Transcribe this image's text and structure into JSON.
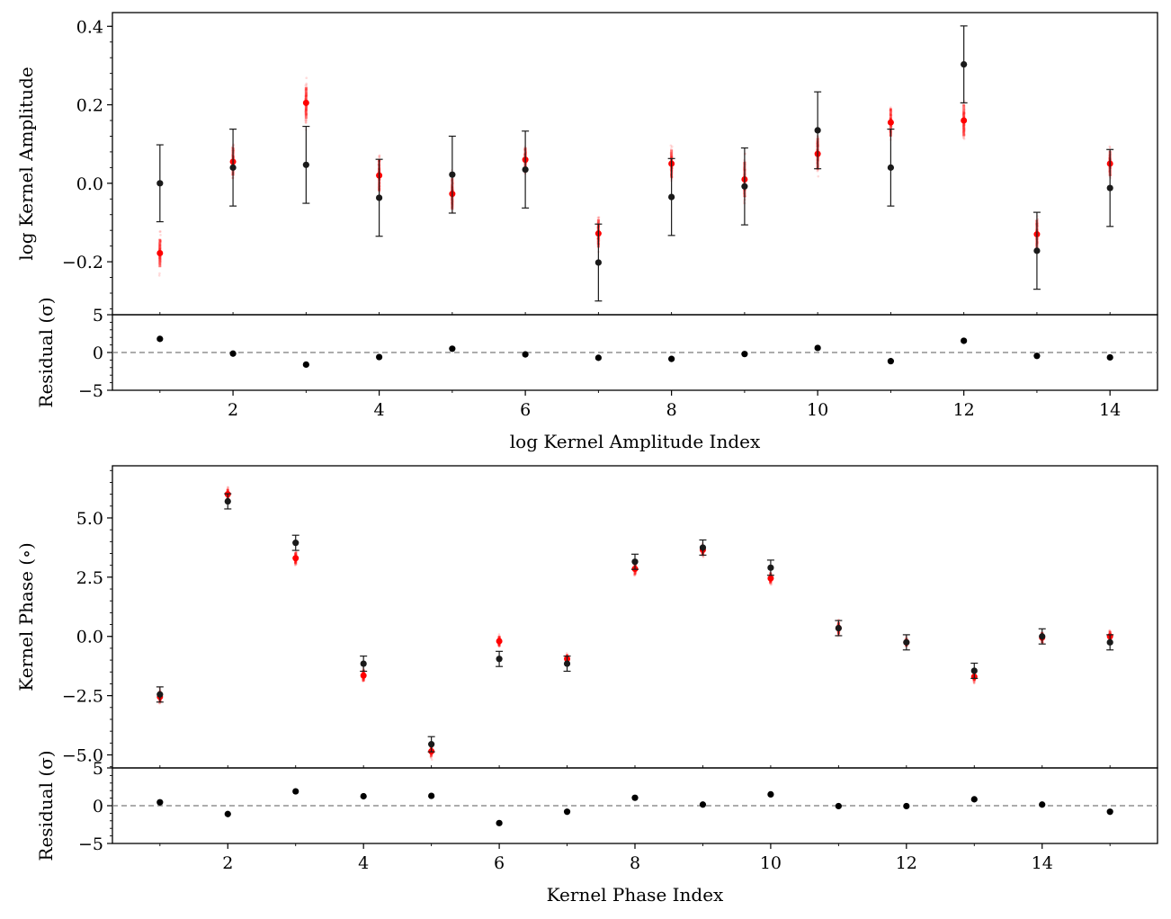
{
  "chart_data": [
    {
      "type": "scatter",
      "panel": "log-kernel-amplitude",
      "ylabel": "log Kernel Amplitude",
      "ylim": [
        -0.335,
        0.435
      ],
      "yticks": [
        -0.2,
        0.0,
        0.2,
        0.4
      ],
      "ytick_labels": [
        "−0.2",
        "0.0",
        "0.2",
        "0.4"
      ],
      "xlim": [
        0.35,
        14.65
      ],
      "series": [
        {
          "role": "observed",
          "color": "#1a1a1a",
          "x": [
            1,
            2,
            3,
            4,
            5,
            6,
            7,
            8,
            9,
            10,
            11,
            12,
            13,
            14
          ],
          "y": [
            0.0,
            0.04,
            0.047,
            -0.037,
            0.022,
            0.035,
            -0.202,
            -0.035,
            -0.008,
            0.135,
            0.04,
            0.303,
            -0.172,
            -0.012
          ],
          "err": [
            0.098,
            0.098,
            0.098,
            0.098,
            0.098,
            0.098,
            0.098,
            0.098,
            0.098,
            0.098,
            0.098,
            0.098,
            0.098,
            0.098
          ]
        },
        {
          "role": "model",
          "color": "#ff0000",
          "x": [
            1,
            2,
            3,
            4,
            5,
            6,
            7,
            8,
            9,
            10,
            11,
            12,
            13,
            14
          ],
          "y": [
            -0.178,
            0.055,
            0.205,
            0.02,
            -0.027,
            0.06,
            -0.128,
            0.05,
            0.01,
            0.075,
            0.155,
            0.16,
            -0.13,
            0.05
          ],
          "spread": [
            0.04,
            0.04,
            0.045,
            0.045,
            0.045,
            0.035,
            0.04,
            0.04,
            0.05,
            0.045,
            0.04,
            0.045,
            0.04,
            0.035
          ]
        }
      ],
      "residual": {
        "ylabel": "Residual (σ)",
        "ylim": [
          -5,
          5
        ],
        "yticks": [
          -5,
          0,
          5
        ],
        "ytick_labels": [
          "−5",
          "0",
          "5"
        ],
        "reference_line": 0,
        "x": [
          1,
          2,
          3,
          4,
          5,
          6,
          7,
          8,
          9,
          10,
          11,
          12,
          13,
          14
        ],
        "values": [
          1.8,
          -0.15,
          -1.6,
          -0.6,
          0.5,
          -0.25,
          -0.7,
          -0.85,
          -0.2,
          0.6,
          -1.15,
          1.55,
          -0.45,
          -0.65
        ]
      },
      "xlabel": "log Kernel Amplitude Index",
      "xticks": [
        2,
        4,
        6,
        8,
        10,
        12,
        14
      ],
      "xtick_labels": [
        "2",
        "4",
        "6",
        "8",
        "10",
        "12",
        "14"
      ]
    },
    {
      "type": "scatter",
      "panel": "kernel-phase",
      "ylabel": "Kernel Phase (∘)",
      "ylim": [
        -5.55,
        7.2
      ],
      "yticks": [
        -5.0,
        -2.5,
        0.0,
        2.5,
        5.0
      ],
      "ytick_labels": [
        "−5.0",
        "−2.5",
        "0.0",
        "2.5",
        "5.0"
      ],
      "xlim": [
        0.3,
        15.7
      ],
      "series": [
        {
          "role": "observed",
          "color": "#1a1a1a",
          "x": [
            1,
            2,
            3,
            4,
            5,
            6,
            7,
            8,
            9,
            10,
            11,
            12,
            13,
            14,
            15
          ],
          "y": [
            -2.45,
            5.7,
            3.95,
            -1.15,
            -4.55,
            -0.95,
            -1.15,
            3.15,
            3.75,
            2.9,
            0.35,
            -0.25,
            -1.45,
            0.0,
            -0.25
          ],
          "err": [
            0.32,
            0.32,
            0.32,
            0.32,
            0.32,
            0.32,
            0.32,
            0.32,
            0.32,
            0.32,
            0.32,
            0.32,
            0.32,
            0.32,
            0.32
          ]
        },
        {
          "role": "model",
          "color": "#ff0000",
          "x": [
            1,
            2,
            3,
            4,
            5,
            6,
            7,
            8,
            9,
            10,
            11,
            12,
            13,
            14,
            15
          ],
          "y": [
            -2.55,
            6.0,
            3.3,
            -1.65,
            -4.85,
            -0.2,
            -0.95,
            2.85,
            3.65,
            2.45,
            0.35,
            -0.25,
            -1.7,
            -0.05,
            0.0
          ],
          "spread": [
            0.28,
            0.25,
            0.28,
            0.28,
            0.25,
            0.25,
            0.22,
            0.28,
            0.25,
            0.25,
            0.28,
            0.2,
            0.22,
            0.25,
            0.25
          ]
        }
      ],
      "residual": {
        "ylabel": "Residual (σ)",
        "ylim": [
          -5,
          5
        ],
        "yticks": [
          -5,
          0,
          5
        ],
        "ytick_labels": [
          "−5",
          "0",
          "5"
        ],
        "reference_line": 0,
        "x": [
          1,
          2,
          3,
          4,
          5,
          6,
          7,
          8,
          9,
          10,
          11,
          12,
          13,
          14,
          15
        ],
        "values": [
          0.45,
          -1.1,
          1.9,
          1.25,
          1.3,
          -2.3,
          -0.8,
          1.05,
          0.15,
          1.5,
          -0.05,
          -0.05,
          0.85,
          0.15,
          -0.8
        ]
      },
      "xlabel": "Kernel Phase Index",
      "xticks": [
        2,
        4,
        6,
        8,
        10,
        12,
        14
      ],
      "xtick_labels": [
        "2",
        "4",
        "6",
        "8",
        "10",
        "12",
        "14"
      ]
    }
  ]
}
